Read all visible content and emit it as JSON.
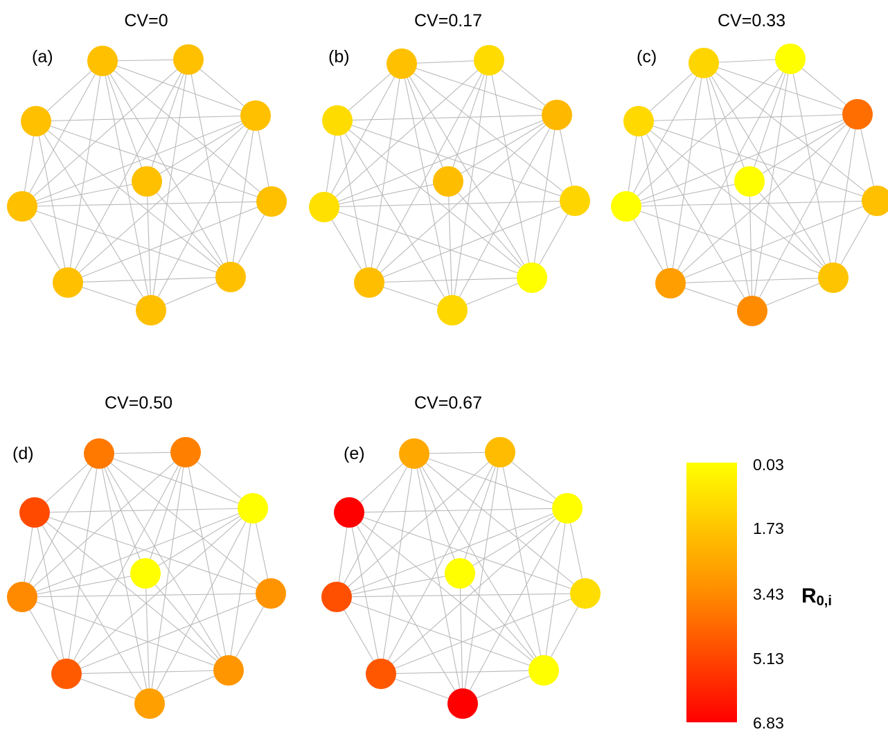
{
  "panels": [
    {
      "id": "a",
      "title": "CV=0",
      "label": "(a)",
      "node_colors": [
        "#ffc000",
        "#ffc000",
        "#ffc000",
        "#ffc000",
        "#ffc000",
        "#ffc000",
        "#ffc000",
        "#ffc000",
        "#ffc000",
        "#ffc000"
      ]
    },
    {
      "id": "b",
      "title": "CV=0.17",
      "label": "(b)",
      "node_colors": [
        "#ffc000",
        "#ffdb00",
        "#ffb800",
        "#ffd500",
        "#ffff00",
        "#ffd800",
        "#ffbf00",
        "#ffe000",
        "#ffdc00",
        "#ffbd00"
      ]
    },
    {
      "id": "c",
      "title": "CV=0.33",
      "label": "(c)",
      "node_colors": [
        "#ffd500",
        "#ffff00",
        "#ff6e00",
        "#ffc000",
        "#ffc400",
        "#ff8c00",
        "#ff9e00",
        "#ffff00",
        "#ffd900",
        "#ffff00"
      ]
    },
    {
      "id": "d",
      "title": "CV=0.50",
      "label": "(d)",
      "node_colors": [
        "#ff7800",
        "#ff8000",
        "#ffff00",
        "#ff9400",
        "#ff9600",
        "#ffa000",
        "#ff5a00",
        "#ff8a00",
        "#ff4a00",
        "#ffff00"
      ]
    },
    {
      "id": "e",
      "title": "CV=0.67",
      "label": "(e)",
      "node_colors": [
        "#ffa800",
        "#ffbc00",
        "#ffff00",
        "#ffdd00",
        "#ffff00",
        "#ff0000",
        "#ff5600",
        "#ff4f00",
        "#ff0000",
        "#ffff00"
      ]
    }
  ],
  "colorbar": {
    "label_main": "R",
    "label_sub": "0,i",
    "ticks": [
      "0.03",
      "1.73",
      "3.43",
      "5.13",
      "6.83"
    ],
    "color_top": "#ffff00",
    "color_mid": "#ff8c00",
    "color_bottom": "#ff0000"
  },
  "edge_color": "#b9b9b9"
}
